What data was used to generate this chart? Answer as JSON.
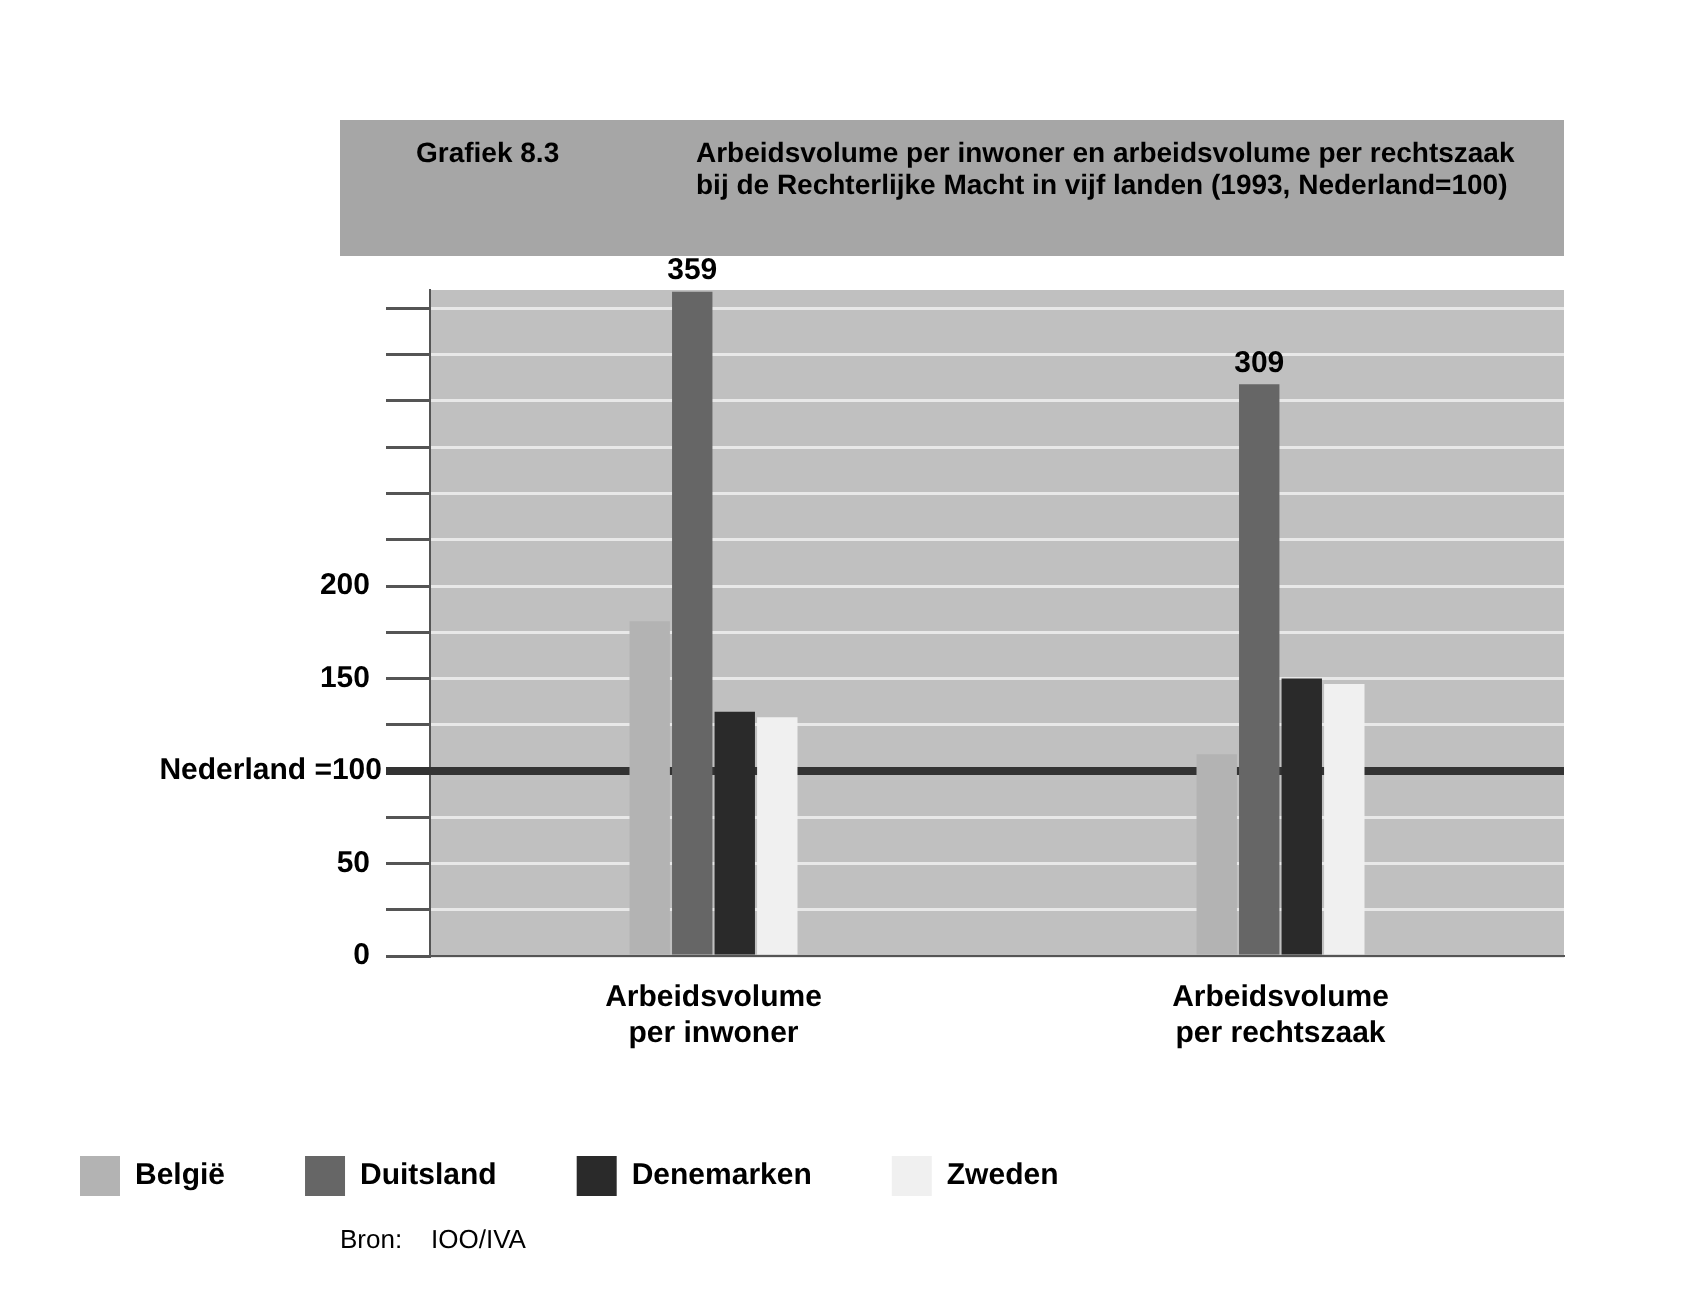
{
  "chart_data": {
    "type": "bar",
    "title": "Grafiek 8.3",
    "subtitle": "Arbeidsvolume per inwoner en arbeidsvolume per rechtszaak bij de Rechterlijke Macht in vijf landen (1993, Nederland=100)",
    "categories": [
      "Arbeidsvolume\nper inwoner",
      "Arbeidsvolume\nper rechtszaak"
    ],
    "series": [
      {
        "name": "België",
        "color": "#b3b3b3",
        "values": [
          181,
          109
        ]
      },
      {
        "name": "Duitsland",
        "color": "#666666",
        "values": [
          359,
          309
        ],
        "value_labels": [
          "359",
          "309"
        ]
      },
      {
        "name": "Denemarken",
        "color": "#2a2a2a",
        "values": [
          132,
          150
        ]
      },
      {
        "name": "Zweden",
        "color": "#f0f0f0",
        "values": [
          129,
          147
        ]
      }
    ],
    "ylim": [
      0,
      360
    ],
    "yticks": [
      0,
      {
        "value": 25,
        "label": null
      },
      50,
      {
        "value": 75,
        "label": null
      },
      {
        "value": 100,
        "label": null
      },
      {
        "value": 125,
        "label": null
      },
      150,
      {
        "value": 175,
        "label": null
      },
      200,
      {
        "value": 225,
        "label": null
      },
      {
        "value": 250,
        "label": null
      },
      {
        "value": 275,
        "label": null
      },
      {
        "value": 300,
        "label": null
      },
      {
        "value": 325,
        "label": null
      },
      {
        "value": 350,
        "label": null
      }
    ],
    "ref_lines": [
      {
        "axis": "y",
        "value": 100,
        "label": "Nederland =100",
        "color": "#333333"
      }
    ],
    "grid": "y",
    "legend": "bottom",
    "annotations": [
      "Bron:    IOO/IVA"
    ]
  }
}
